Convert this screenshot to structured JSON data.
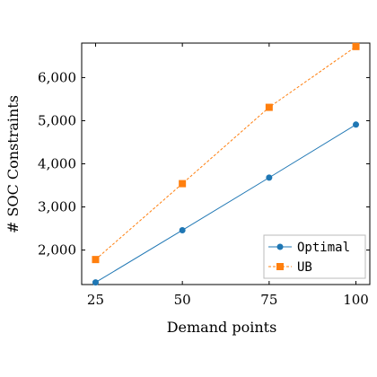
{
  "chart_data": {
    "type": "line",
    "title": "",
    "xlabel": "Demand points",
    "ylabel": "# SOC Constraints",
    "x": [
      25,
      50,
      75,
      100
    ],
    "xticks": [
      25,
      50,
      75,
      100
    ],
    "xtick_labels": [
      "25",
      "50",
      "75",
      "100"
    ],
    "yticks": [
      2000,
      3000,
      4000,
      5000,
      6000
    ],
    "ytick_labels": [
      "2,000",
      "3,000",
      "4,000",
      "5,000",
      "6,000"
    ],
    "xlim": [
      21,
      104
    ],
    "ylim": [
      1200,
      6800
    ],
    "grid": false,
    "legend_position": "bottom-right",
    "series": [
      {
        "name": "Optimal",
        "values": [
          1250,
          2460,
          3680,
          4910
        ],
        "color": "#1f77b4",
        "marker": "circle",
        "line": "solid"
      },
      {
        "name": "UB",
        "values": [
          1780,
          3540,
          5310,
          6720
        ],
        "color": "#ff7f0e",
        "marker": "square",
        "line": "dashed"
      }
    ]
  }
}
